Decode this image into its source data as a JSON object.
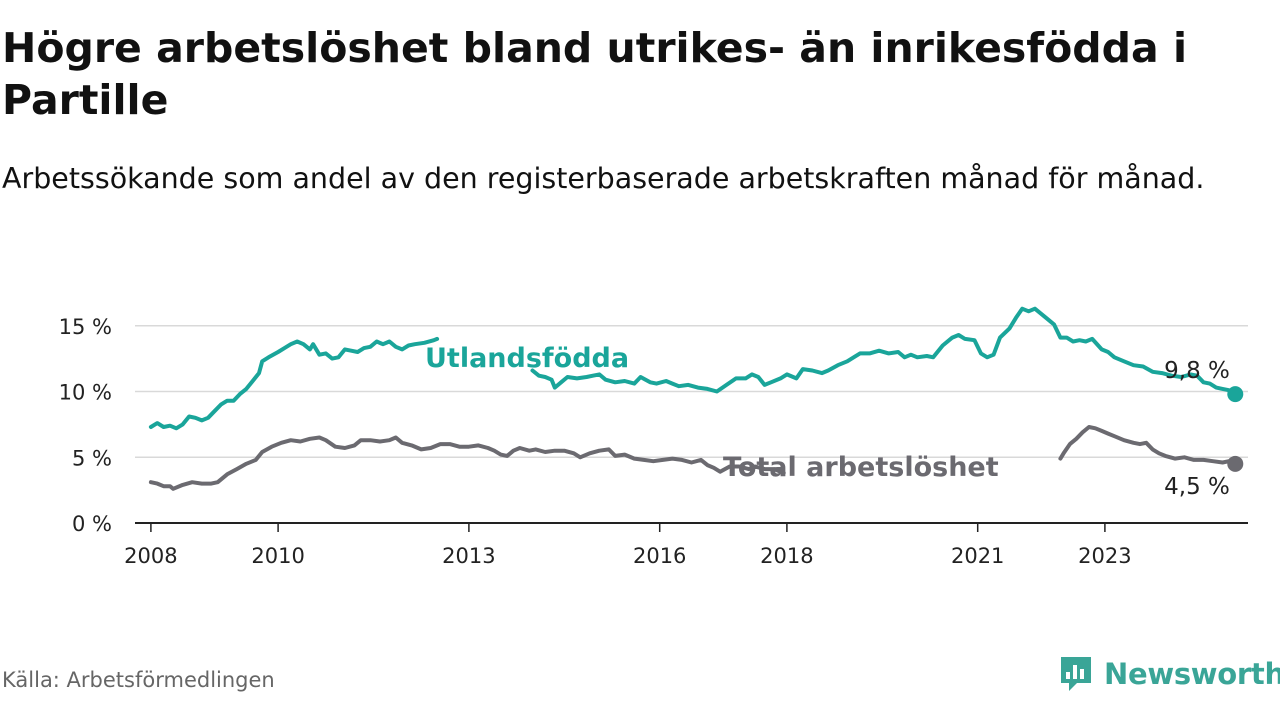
{
  "title": "Högre arbetslöshet bland utrikes- än inrikesfödda i Partille",
  "subtitle": "Arbetssökande som andel av den registerbaserade arbetskraften månad för månad.",
  "source": "Källa: Arbetsförmedlingen",
  "brand": {
    "name": "Newsworthy",
    "icon": "newsworthy-chart-logo-icon"
  },
  "colors": {
    "foreign": "#1aa59a",
    "total": "#6b6a70",
    "grid": "#d9d9d9",
    "axis": "#222222"
  },
  "chart_data": {
    "type": "line",
    "title": "Högre arbetslöshet bland utrikes- än inrikesfödda i Partille",
    "xlabel": "",
    "ylabel": "",
    "xlim": [
      2007.75,
      2024.7
    ],
    "ylim": [
      0,
      15
    ],
    "y_ticks": [
      0,
      5,
      10,
      15
    ],
    "y_tick_labels": [
      "0 %",
      "5 %",
      "10 %",
      "15 %"
    ],
    "x_ticks": [
      2008,
      2010,
      2013,
      2016,
      2018,
      2021,
      2023
    ],
    "x_tick_labels": [
      "2008",
      "2010",
      "2013",
      "2016",
      "2018",
      "2021",
      "2023"
    ],
    "grid": true,
    "series": [
      {
        "name": "Utlandsfödda",
        "label_position": "inline-above",
        "end_value_label": "9,8 %",
        "points": [
          [
            2008.0,
            7.3
          ],
          [
            2008.1,
            7.6
          ],
          [
            2008.2,
            7.3
          ],
          [
            2008.3,
            7.4
          ],
          [
            2008.4,
            7.2
          ],
          [
            2008.5,
            7.5
          ],
          [
            2008.6,
            8.1
          ],
          [
            2008.7,
            8.0
          ],
          [
            2008.8,
            7.8
          ],
          [
            2008.9,
            8.0
          ],
          [
            2009.0,
            8.5
          ],
          [
            2009.1,
            9.0
          ],
          [
            2009.2,
            9.3
          ],
          [
            2009.3,
            9.3
          ],
          [
            2009.4,
            9.8
          ],
          [
            2009.5,
            10.2
          ],
          [
            2009.6,
            10.8
          ],
          [
            2009.7,
            11.4
          ],
          [
            2009.75,
            12.3
          ],
          [
            2009.85,
            12.6
          ],
          [
            2010.0,
            13.0
          ],
          [
            2010.1,
            13.3
          ],
          [
            2010.2,
            13.6
          ],
          [
            2010.3,
            13.8
          ],
          [
            2010.4,
            13.6
          ],
          [
            2010.5,
            13.2
          ],
          [
            2010.55,
            13.6
          ],
          [
            2010.65,
            12.8
          ],
          [
            2010.75,
            12.9
          ],
          [
            2010.85,
            12.5
          ],
          [
            2010.95,
            12.6
          ],
          [
            2011.05,
            13.2
          ],
          [
            2011.15,
            13.1
          ],
          [
            2011.25,
            13.0
          ],
          [
            2011.35,
            13.3
          ],
          [
            2011.45,
            13.4
          ],
          [
            2011.55,
            13.8
          ],
          [
            2011.65,
            13.6
          ],
          [
            2011.75,
            13.8
          ],
          [
            2011.85,
            13.4
          ],
          [
            2011.95,
            13.2
          ],
          [
            2012.05,
            13.5
          ],
          [
            2012.15,
            13.6
          ],
          [
            2012.3,
            13.7
          ],
          [
            2012.45,
            13.9
          ],
          [
            2012.5,
            14.0
          ],
          [
            2014.0,
            11.6
          ],
          [
            2014.1,
            11.2
          ],
          [
            2014.2,
            11.1
          ],
          [
            2014.3,
            10.9
          ],
          [
            2014.35,
            10.3
          ],
          [
            2014.45,
            10.7
          ],
          [
            2014.55,
            11.1
          ],
          [
            2014.7,
            11.0
          ],
          [
            2014.85,
            11.1
          ],
          [
            2014.95,
            11.2
          ],
          [
            2015.05,
            11.3
          ],
          [
            2015.15,
            10.9
          ],
          [
            2015.3,
            10.7
          ],
          [
            2015.45,
            10.8
          ],
          [
            2015.6,
            10.6
          ],
          [
            2015.7,
            11.1
          ],
          [
            2015.85,
            10.7
          ],
          [
            2015.95,
            10.6
          ],
          [
            2016.1,
            10.8
          ],
          [
            2016.2,
            10.6
          ],
          [
            2016.3,
            10.4
          ],
          [
            2016.45,
            10.5
          ],
          [
            2016.6,
            10.3
          ],
          [
            2016.75,
            10.2
          ],
          [
            2016.9,
            10.0
          ],
          [
            2017.05,
            10.5
          ],
          [
            2017.2,
            11.0
          ],
          [
            2017.35,
            11.0
          ],
          [
            2017.45,
            11.3
          ],
          [
            2017.55,
            11.1
          ],
          [
            2017.65,
            10.5
          ],
          [
            2017.75,
            10.7
          ],
          [
            2017.9,
            11.0
          ],
          [
            2018.0,
            11.3
          ],
          [
            2018.15,
            11.0
          ],
          [
            2018.25,
            11.7
          ],
          [
            2018.4,
            11.6
          ],
          [
            2018.55,
            11.4
          ],
          [
            2018.65,
            11.6
          ],
          [
            2018.8,
            12.0
          ],
          [
            2018.95,
            12.3
          ],
          [
            2019.05,
            12.6
          ],
          [
            2019.15,
            12.9
          ],
          [
            2019.3,
            12.9
          ],
          [
            2019.45,
            13.1
          ],
          [
            2019.6,
            12.9
          ],
          [
            2019.75,
            13.0
          ],
          [
            2019.85,
            12.6
          ],
          [
            2019.95,
            12.8
          ],
          [
            2020.05,
            12.6
          ],
          [
            2020.2,
            12.7
          ],
          [
            2020.3,
            12.6
          ],
          [
            2020.45,
            13.5
          ],
          [
            2020.6,
            14.1
          ],
          [
            2020.7,
            14.3
          ],
          [
            2020.8,
            14.0
          ],
          [
            2020.95,
            13.9
          ],
          [
            2021.05,
            12.9
          ],
          [
            2021.15,
            12.6
          ],
          [
            2021.25,
            12.8
          ],
          [
            2021.35,
            14.1
          ],
          [
            2021.5,
            14.8
          ],
          [
            2021.6,
            15.6
          ],
          [
            2021.7,
            16.3
          ],
          [
            2021.8,
            16.1
          ],
          [
            2021.9,
            16.3
          ],
          [
            2022.0,
            15.9
          ],
          [
            2022.1,
            15.5
          ],
          [
            2022.2,
            15.1
          ],
          [
            2022.3,
            14.1
          ],
          [
            2022.4,
            14.1
          ],
          [
            2022.5,
            13.8
          ],
          [
            2022.6,
            13.9
          ],
          [
            2022.7,
            13.8
          ],
          [
            2022.8,
            14.0
          ],
          [
            2022.95,
            13.2
          ],
          [
            2023.05,
            13.0
          ],
          [
            2023.15,
            12.6
          ],
          [
            2023.3,
            12.3
          ],
          [
            2023.45,
            12.0
          ],
          [
            2023.6,
            11.9
          ],
          [
            2023.75,
            11.5
          ],
          [
            2023.9,
            11.4
          ],
          [
            2024.05,
            11.2
          ],
          [
            2024.2,
            11.1
          ],
          [
            2024.35,
            11.3
          ],
          [
            2024.45,
            11.2
          ],
          [
            2024.55,
            10.7
          ],
          [
            2024.65,
            10.6
          ],
          [
            2024.75,
            10.3
          ],
          [
            2024.85,
            10.2
          ],
          [
            2024.95,
            10.1
          ],
          [
            2025.05,
            9.8
          ]
        ]
      },
      {
        "name": "Total arbetslöshet",
        "label_position": "inline",
        "end_value_label": "4,5 %",
        "points": [
          [
            2008.0,
            3.1
          ],
          [
            2008.1,
            3.0
          ],
          [
            2008.2,
            2.8
          ],
          [
            2008.3,
            2.8
          ],
          [
            2008.35,
            2.6
          ],
          [
            2008.5,
            2.9
          ],
          [
            2008.65,
            3.1
          ],
          [
            2008.8,
            3.0
          ],
          [
            2008.95,
            3.0
          ],
          [
            2009.05,
            3.1
          ],
          [
            2009.2,
            3.7
          ],
          [
            2009.35,
            4.1
          ],
          [
            2009.5,
            4.5
          ],
          [
            2009.65,
            4.8
          ],
          [
            2009.75,
            5.4
          ],
          [
            2009.9,
            5.8
          ],
          [
            2010.05,
            6.1
          ],
          [
            2010.2,
            6.3
          ],
          [
            2010.35,
            6.2
          ],
          [
            2010.5,
            6.4
          ],
          [
            2010.65,
            6.5
          ],
          [
            2010.75,
            6.3
          ],
          [
            2010.9,
            5.8
          ],
          [
            2011.05,
            5.7
          ],
          [
            2011.2,
            5.9
          ],
          [
            2011.3,
            6.3
          ],
          [
            2011.45,
            6.3
          ],
          [
            2011.6,
            6.2
          ],
          [
            2011.75,
            6.3
          ],
          [
            2011.85,
            6.5
          ],
          [
            2011.95,
            6.1
          ],
          [
            2012.1,
            5.9
          ],
          [
            2012.25,
            5.6
          ],
          [
            2012.4,
            5.7
          ],
          [
            2012.55,
            6.0
          ],
          [
            2012.7,
            6.0
          ],
          [
            2012.85,
            5.8
          ],
          [
            2013.0,
            5.8
          ],
          [
            2013.15,
            5.9
          ],
          [
            2013.3,
            5.7
          ],
          [
            2013.4,
            5.5
          ],
          [
            2013.5,
            5.2
          ],
          [
            2013.6,
            5.1
          ],
          [
            2013.7,
            5.5
          ],
          [
            2013.8,
            5.7
          ],
          [
            2013.95,
            5.5
          ],
          [
            2014.05,
            5.6
          ],
          [
            2014.2,
            5.4
          ],
          [
            2014.35,
            5.5
          ],
          [
            2014.5,
            5.5
          ],
          [
            2014.65,
            5.3
          ],
          [
            2014.75,
            5.0
          ],
          [
            2014.9,
            5.3
          ],
          [
            2015.05,
            5.5
          ],
          [
            2015.2,
            5.6
          ],
          [
            2015.3,
            5.1
          ],
          [
            2015.45,
            5.2
          ],
          [
            2015.6,
            4.9
          ],
          [
            2015.75,
            4.8
          ],
          [
            2015.9,
            4.7
          ],
          [
            2016.05,
            4.8
          ],
          [
            2016.2,
            4.9
          ],
          [
            2016.35,
            4.8
          ],
          [
            2016.5,
            4.6
          ],
          [
            2016.65,
            4.8
          ],
          [
            2016.75,
            4.4
          ],
          [
            2016.85,
            4.2
          ],
          [
            2016.95,
            3.9
          ],
          [
            2017.1,
            4.3
          ],
          [
            2017.25,
            4.3
          ],
          [
            2017.4,
            4.1
          ],
          [
            2017.5,
            4.3
          ],
          [
            2017.65,
            4.1
          ],
          [
            2017.8,
            4.1
          ],
          [
            2017.95,
            3.8
          ],
          [
            2022.3,
            4.9
          ],
          [
            2022.35,
            5.3
          ],
          [
            2022.45,
            6.0
          ],
          [
            2022.55,
            6.4
          ],
          [
            2022.65,
            6.9
          ],
          [
            2022.75,
            7.3
          ],
          [
            2022.85,
            7.2
          ],
          [
            2022.95,
            7.0
          ],
          [
            2023.05,
            6.8
          ],
          [
            2023.15,
            6.6
          ],
          [
            2023.3,
            6.3
          ],
          [
            2023.45,
            6.1
          ],
          [
            2023.55,
            6.0
          ],
          [
            2023.65,
            6.1
          ],
          [
            2023.75,
            5.6
          ],
          [
            2023.85,
            5.3
          ],
          [
            2023.95,
            5.1
          ],
          [
            2024.1,
            4.9
          ],
          [
            2024.25,
            5.0
          ],
          [
            2024.4,
            4.8
          ],
          [
            2024.55,
            4.8
          ],
          [
            2024.7,
            4.7
          ],
          [
            2024.85,
            4.6
          ],
          [
            2024.95,
            4.7
          ],
          [
            2025.05,
            4.5
          ]
        ]
      }
    ]
  }
}
